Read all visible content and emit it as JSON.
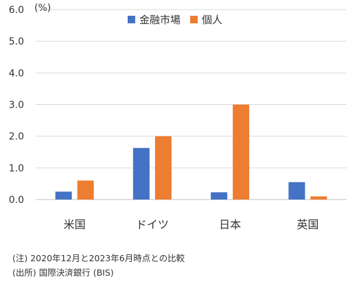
{
  "chart_data": {
    "type": "bar",
    "unit_label": "(%)",
    "categories": [
      "米国",
      "ドイツ",
      "日本",
      "英国"
    ],
    "series": [
      {
        "name": "金融市場",
        "color": "#4472C4",
        "values": [
          0.25,
          1.63,
          0.23,
          0.55
        ]
      },
      {
        "name": "個人",
        "color": "#ED7D31",
        "values": [
          0.6,
          2.0,
          3.0,
          0.1
        ]
      }
    ],
    "ylim": [
      0,
      6
    ],
    "yticks": [
      "0.0",
      "1.0",
      "2.0",
      "3.0",
      "4.0",
      "5.0",
      "6.0"
    ],
    "grid": true,
    "legend_position": "top-center"
  },
  "notes": [
    "(注) 2020年12月と2023年6月時点との比較",
    "(出所) 国際決済銀行 (BIS)"
  ]
}
